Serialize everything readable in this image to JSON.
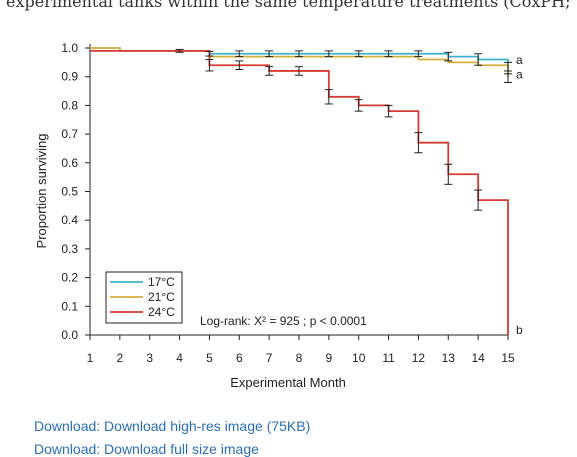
{
  "page": {
    "top_text": "experimental tanks within the same temperature treatments (CoxPH; Tank p",
    "download_highres": "Download: Download high-res image (75KB)",
    "download_full": "Download: Download full size image"
  },
  "chart_data": {
    "type": "line",
    "step": true,
    "xlabel": "Experimental Month",
    "ylabel": "Proportion surviving",
    "xlim": [
      1,
      15
    ],
    "ylim": [
      0,
      1
    ],
    "x_ticks": [
      1,
      2,
      3,
      4,
      5,
      6,
      7,
      8,
      9,
      10,
      11,
      12,
      13,
      14,
      15
    ],
    "y_ticks": [
      "0.0",
      "0.1",
      "0.2",
      "0.3",
      "0.4",
      "0.5",
      "0.6",
      "0.7",
      "0.8",
      "0.9",
      "1.0"
    ],
    "legend_position": "bottom-left",
    "annotation": "Log-rank: X² = 925 ; p < 0.0001",
    "x": [
      1,
      2,
      3,
      4,
      5,
      6,
      7,
      8,
      9,
      10,
      11,
      12,
      13,
      14,
      15
    ],
    "series": [
      {
        "name": "17°C",
        "color": "#3fb3cc",
        "values": [
          1.0,
          0.99,
          0.99,
          0.99,
          0.98,
          0.98,
          0.98,
          0.98,
          0.98,
          0.98,
          0.98,
          0.98,
          0.97,
          0.96,
          0.93
        ],
        "errors": [
          0,
          0,
          0,
          0.005,
          0.008,
          0.01,
          0.01,
          0.01,
          0.01,
          0.01,
          0.01,
          0.01,
          0.015,
          0.02,
          0.02
        ],
        "letter": "a"
      },
      {
        "name": "21°C",
        "color": "#d4b13f",
        "values": [
          1.0,
          0.99,
          0.99,
          0.99,
          0.97,
          0.97,
          0.97,
          0.97,
          0.97,
          0.97,
          0.97,
          0.96,
          0.95,
          0.94,
          0.9
        ],
        "errors": [
          0,
          0,
          0,
          0,
          0,
          0,
          0,
          0,
          0,
          0,
          0,
          0,
          0,
          0,
          0.02
        ],
        "letter": "a"
      },
      {
        "name": "24°C",
        "color": "#d63a32",
        "values": [
          0.99,
          0.99,
          0.99,
          0.99,
          0.94,
          0.94,
          0.92,
          0.92,
          0.83,
          0.8,
          0.78,
          0.67,
          0.56,
          0.47,
          0.0
        ],
        "errors": [
          0,
          0,
          0,
          0,
          0.02,
          0.015,
          0.015,
          0.015,
          0.025,
          0.02,
          0.02,
          0.035,
          0.035,
          0.035,
          0
        ],
        "letter": "b"
      }
    ]
  }
}
